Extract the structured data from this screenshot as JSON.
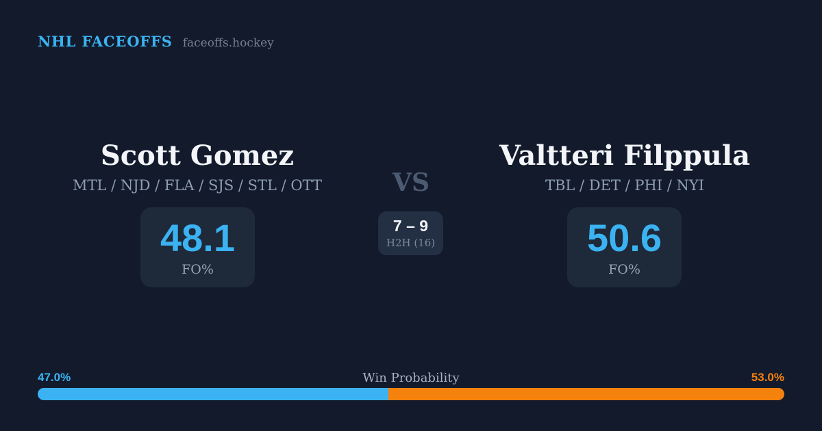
{
  "header": {
    "brand": "NHL FACEOFFS",
    "site": "faceoffs.hockey"
  },
  "players": [
    {
      "name": "Scott Gomez",
      "teams": "MTL / NJD / FLA / SJS / STL / OTT",
      "fo_pct": "48.1",
      "fo_label": "FO%"
    },
    {
      "name": "Valtteri Filppula",
      "teams": "TBL / DET / PHI / NYI",
      "fo_pct": "50.6",
      "fo_label": "FO%"
    }
  ],
  "versus": {
    "label": "VS",
    "h2h_record": "7 – 9",
    "h2h_label": "H2H (16)"
  },
  "win_probability": {
    "title": "Win Probability",
    "left_pct_label": "47.0%",
    "right_pct_label": "53.0%",
    "left_pct": 47,
    "right_pct": 53
  },
  "colors": {
    "background": "#121A2B",
    "card": "#1E2939",
    "card_h2h": "#232F43",
    "accent_blue": "#3BB3F2",
    "accent_orange": "#F5820D",
    "text_primary": "#F3F5F8",
    "text_teams": "#8E9EB3",
    "text_vs": "#4D5B72",
    "text_site": "#76808F"
  }
}
